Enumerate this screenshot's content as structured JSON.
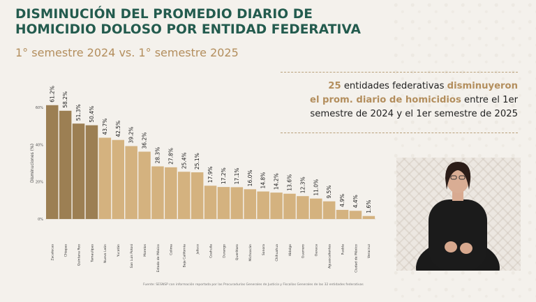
{
  "title": "DISMINUCIÓN DEL PROMEDIO DIARIO DE HOMICIDIO DOLOSO POR ENTIDAD FEDERATIVA",
  "subtitle": "1° semestre 2024 vs. 1° semestre 2025",
  "callout": {
    "num": "25",
    "t1": " entidades federativas ",
    "h1": "disminuyeron",
    "h2": "el prom. diario de homicidios",
    "t2": " entre el 1er semestre de 2024 y el 1er semestre de 2025"
  },
  "source": "Fuente: SESNSP con información reportada por las Procuradurías Generales de Justicia y Fiscalías Generales de las 32 entidades federativas",
  "colors": {
    "highlight": "#9c7f53",
    "bar": "#d4b27f",
    "title": "#235b4e",
    "accent": "#b38e5d"
  },
  "chart_data": {
    "type": "bar",
    "ylabel": "Disminuciones (%)",
    "ylim": [
      0,
      60
    ],
    "yticks": [
      0,
      20,
      40,
      60
    ],
    "ytick_labels": [
      "0%",
      "20%",
      "40%",
      "60%"
    ],
    "grid": false,
    "categories": [
      "Zacatecas",
      "Chiapas",
      "Quintana Roo",
      "Tamaulipas",
      "Nuevo León",
      "Yucatán",
      "San Luis Potosí",
      "Morelos",
      "Estado de México",
      "Colima",
      "Baja California",
      "Jalisco",
      "Coahuila",
      "Durango",
      "Querétaro",
      "Michoacán",
      "Sonora",
      "Chihuahua",
      "Hidalgo",
      "Guerrero",
      "Oaxaca",
      "Aguascalientes",
      "Puebla",
      "Ciudad de México",
      "Veracruz"
    ],
    "values": [
      61.2,
      58.2,
      51.3,
      50.4,
      43.7,
      42.5,
      39.2,
      36.2,
      28.3,
      27.8,
      25.4,
      25.1,
      17.9,
      17.2,
      17.1,
      16.0,
      14.8,
      14.2,
      13.6,
      12.3,
      11.0,
      9.5,
      4.9,
      4.4,
      1.6
    ],
    "value_labels": [
      "61.2%",
      "58.2%",
      "51.3%",
      "50.4%",
      "43.7%",
      "42.5%",
      "39.2%",
      "36.2%",
      "28.3%",
      "27.8%",
      "25.4%",
      "25.1%",
      "17.9%",
      "17.2%",
      "17.1%",
      "16.0%",
      "14.8%",
      "14.2%",
      "13.6%",
      "12.3%",
      "11.0%",
      "9.5%",
      "4.9%",
      "4.4%",
      "1.6%"
    ],
    "highlight_count": 4
  }
}
